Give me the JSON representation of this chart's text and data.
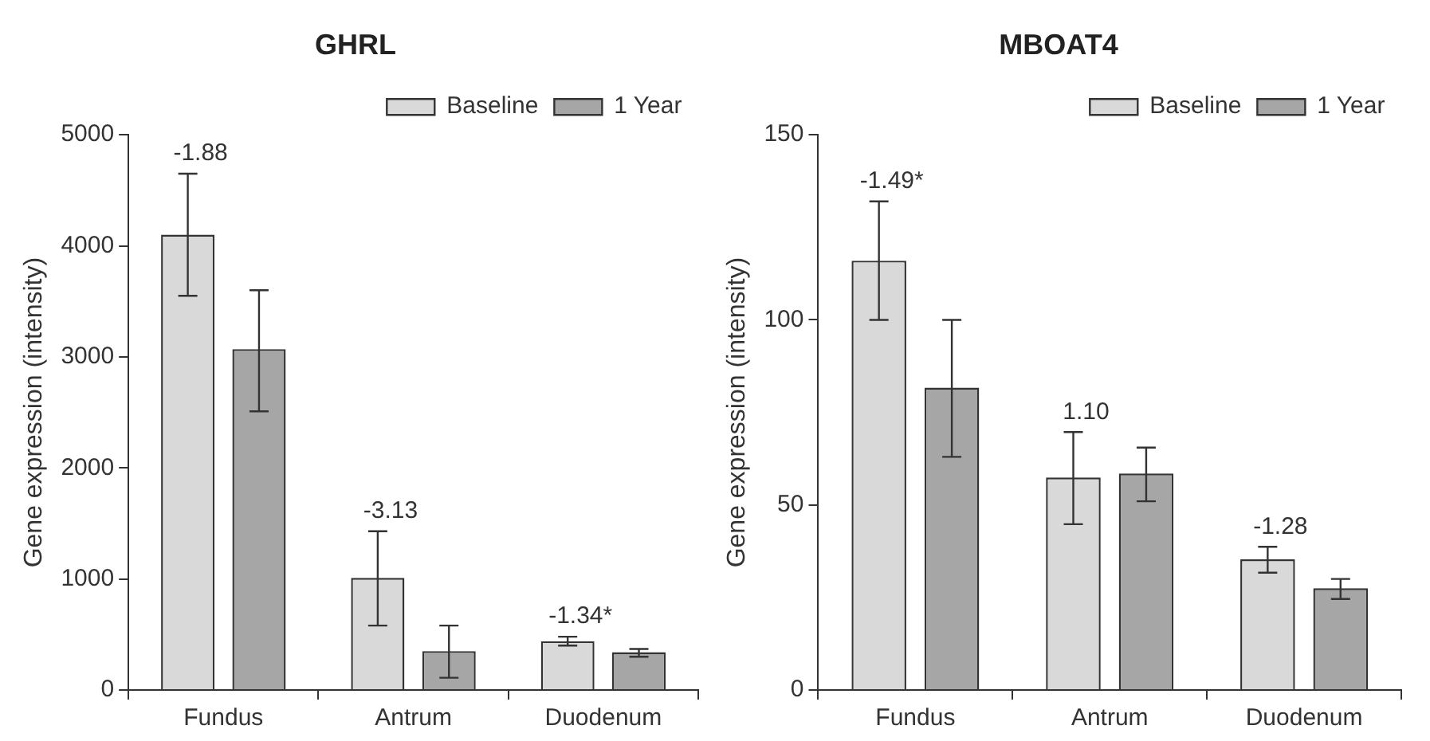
{
  "chart_data": [
    {
      "type": "bar",
      "title": "GHRL",
      "ylabel": "Gene expression (intensity)",
      "categories": [
        "Fundus",
        "Antrum",
        "Duodenum"
      ],
      "series": [
        {
          "name": "Baseline",
          "color": "#d9d9d9",
          "values": [
            4100,
            1010,
            440
          ],
          "errors": [
            [
              3550,
              4650
            ],
            [
              580,
              1430
            ],
            [
              400,
              480
            ]
          ]
        },
        {
          "name": "1 Year",
          "color": "#a6a6a6",
          "values": [
            3070,
            350,
            340
          ],
          "errors": [
            [
              2510,
              3600
            ],
            [
              110,
              580
            ],
            [
              300,
              370
            ]
          ]
        }
      ],
      "ylim": [
        0,
        5000
      ],
      "yticks": [
        0,
        1000,
        2000,
        3000,
        4000,
        5000
      ],
      "grid": false,
      "legend": "top right",
      "annotations": [
        "-1.88",
        "-3.13",
        "-1.34*"
      ]
    },
    {
      "type": "bar",
      "title": "MBOAT4",
      "ylabel": "Gene expression (intensity)",
      "categories": [
        "Fundus",
        "Antrum",
        "Duodenum"
      ],
      "series": [
        {
          "name": "Baseline",
          "color": "#d9d9d9",
          "values": [
            116,
            57.4,
            35.3
          ],
          "errors": [
            [
              100,
              132
            ],
            [
              44.8,
              69.7
            ],
            [
              31.7,
              38.7
            ]
          ]
        },
        {
          "name": "1 Year",
          "color": "#a6a6a6",
          "values": [
            81.7,
            58.5,
            27.5
          ],
          "errors": [
            [
              63,
              100
            ],
            [
              51,
              65.5
            ],
            [
              24.6,
              30
            ]
          ]
        }
      ],
      "ylim": [
        0,
        150
      ],
      "yticks": [
        0,
        50,
        100,
        150
      ],
      "grid": false,
      "legend": "top right",
      "annotations": [
        "-1.49*",
        "1.10",
        "-1.28"
      ]
    }
  ]
}
